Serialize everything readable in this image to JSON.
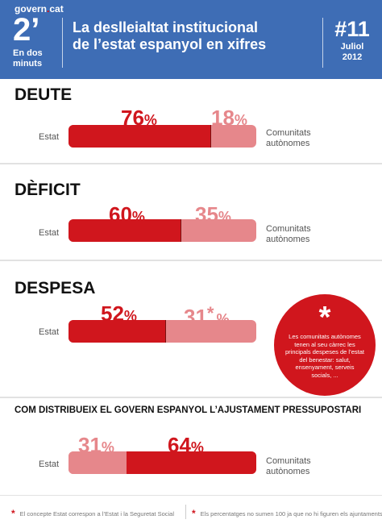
{
  "header": {
    "brand_name": "govern",
    "brand_dot": ".",
    "brand_tld": "cat",
    "badge_big": "2’",
    "badge_line1": "En dos",
    "badge_line2": "minuts",
    "title_line1": "La deslleialtat institucional",
    "title_line2": "de l’estat espanyol en xifres",
    "issue_number": "#11",
    "issue_month": "Juliol",
    "issue_year": "2012"
  },
  "colors": {
    "header_bg": "#3e6db5",
    "estat_red": "#d0161d",
    "ccaa_pink": "#e6878b"
  },
  "sections": {
    "deute": {
      "title": "DEUTE",
      "left_label": "Estat",
      "right_label_1": "Comunitats",
      "right_label_2": "autònomes",
      "estat_value": "76",
      "ccaa_value": "18",
      "pct_sign": "%"
    },
    "deficit": {
      "title": "DÈFICIT",
      "left_label": "Estat",
      "right_label_1": "Comunitats",
      "right_label_2": "autònomes",
      "estat_value": "60",
      "ccaa_value": "35",
      "pct_sign": "%"
    },
    "despesa": {
      "title": "DESPESA",
      "left_label": "Estat",
      "estat_value": "52",
      "ccaa_value": "31",
      "ccaa_marker": "*",
      "pct_sign": "%"
    },
    "ajustament": {
      "title": "COM DISTRIBUEIX EL GOVERN ESPANYOL L’AJUSTAMENT PRESSUPOSTARI",
      "left_label": "Estat",
      "right_label_1": "Comunitats",
      "right_label_2": "autònomes",
      "estat_value": "64",
      "ccaa_value": "31",
      "pct_sign": "%"
    }
  },
  "note_circle": {
    "asterisk": "*",
    "text": "Les comunitats autònomes tenen al seu càrrec les principals despeses de l’estat del benestar: salut, ensenyament, serveis socials, ..."
  },
  "footer": {
    "star": "*",
    "note1": "El concepte Estat correspon a l’Estat i la Seguretat Social",
    "note2": "Els percentatges no sumen 100 ja que no hi figuren els ajuntaments"
  },
  "chart_data": [
    {
      "type": "bar",
      "title": "DEUTE",
      "categories": [
        "Estat",
        "Comunitats autònomes"
      ],
      "values": [
        76,
        18
      ],
      "unit": "%"
    },
    {
      "type": "bar",
      "title": "DÈFICIT",
      "categories": [
        "Estat",
        "Comunitats autònomes"
      ],
      "values": [
        60,
        35
      ],
      "unit": "%"
    },
    {
      "type": "bar",
      "title": "DESPESA",
      "categories": [
        "Estat",
        "Comunitats autònomes"
      ],
      "values": [
        52,
        31
      ],
      "unit": "%"
    },
    {
      "type": "bar",
      "title": "COM DISTRIBUEIX EL GOVERN ESPANYOL L’AJUSTAMENT PRESSUPOSTARI",
      "categories": [
        "Comunitats autònomes",
        "Estat"
      ],
      "values": [
        31,
        64
      ],
      "unit": "%"
    }
  ]
}
